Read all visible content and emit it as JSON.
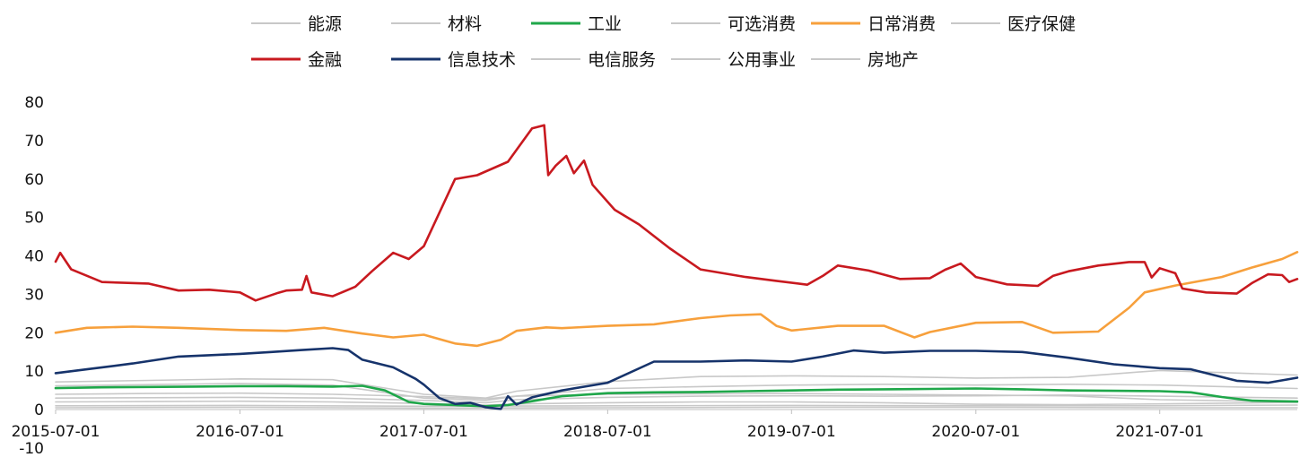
{
  "chart_data": {
    "type": "line",
    "title": "",
    "xlabel": "",
    "ylabel": "",
    "ylim": [
      -10,
      80
    ],
    "yticks": [
      -10,
      0,
      10,
      20,
      30,
      40,
      50,
      60,
      70,
      80
    ],
    "xlim": [
      "2015-07-01",
      "2022-03-31"
    ],
    "xticks": [
      "2015-07-01",
      "2016-07-01",
      "2017-07-01",
      "2018-07-01",
      "2019-07-01",
      "2020-07-01",
      "2021-07-01"
    ],
    "grid": false,
    "legend_position": "top",
    "series": [
      {
        "name": "能源",
        "color": "#c8c8c8",
        "highlight": false,
        "points": [
          [
            "2015-07-01",
            2.0
          ],
          [
            "2016-01-01",
            2.1
          ],
          [
            "2016-07-01",
            2.2
          ],
          [
            "2017-01-01",
            2.0
          ],
          [
            "2017-07-01",
            1.6
          ],
          [
            "2017-11-01",
            1.2
          ],
          [
            "2018-01-01",
            1.5
          ],
          [
            "2018-07-01",
            1.8
          ],
          [
            "2019-01-01",
            2.0
          ],
          [
            "2019-07-01",
            2.0
          ],
          [
            "2020-01-01",
            1.8
          ],
          [
            "2020-07-01",
            1.4
          ],
          [
            "2021-01-01",
            1.3
          ],
          [
            "2021-07-01",
            1.5
          ],
          [
            "2022-03-31",
            1.9
          ]
        ]
      },
      {
        "name": "材料",
        "color": "#c8c8c8",
        "highlight": false,
        "points": [
          [
            "2015-07-01",
            3.0
          ],
          [
            "2016-01-01",
            3.1
          ],
          [
            "2016-07-01",
            3.2
          ],
          [
            "2017-01-01",
            3.0
          ],
          [
            "2017-07-01",
            2.4
          ],
          [
            "2017-11-01",
            1.8
          ],
          [
            "2018-01-01",
            2.6
          ],
          [
            "2018-07-01",
            3.2
          ],
          [
            "2019-01-01",
            3.5
          ],
          [
            "2019-07-01",
            3.6
          ],
          [
            "2020-01-01",
            3.5
          ],
          [
            "2020-07-01",
            3.6
          ],
          [
            "2021-01-01",
            3.8
          ],
          [
            "2021-07-01",
            3.5
          ],
          [
            "2022-03-31",
            3.0
          ]
        ]
      },
      {
        "name": "工业",
        "color": "#1fa74a",
        "highlight": true,
        "points": [
          [
            "2015-07-01",
            5.6
          ],
          [
            "2015-10-01",
            5.8
          ],
          [
            "2016-01-01",
            5.9
          ],
          [
            "2016-04-01",
            6.0
          ],
          [
            "2016-07-01",
            6.1
          ],
          [
            "2016-10-01",
            6.1
          ],
          [
            "2017-01-01",
            6.0
          ],
          [
            "2017-03-01",
            6.2
          ],
          [
            "2017-04-15",
            5.0
          ],
          [
            "2017-06-01",
            2.0
          ],
          [
            "2017-07-01",
            1.5
          ],
          [
            "2017-09-01",
            1.2
          ],
          [
            "2017-11-01",
            0.9
          ],
          [
            "2017-12-15",
            1.2
          ],
          [
            "2018-02-01",
            2.2
          ],
          [
            "2018-04-01",
            3.5
          ],
          [
            "2018-07-01",
            4.3
          ],
          [
            "2018-10-01",
            4.5
          ],
          [
            "2019-01-01",
            4.6
          ],
          [
            "2019-04-01",
            4.8
          ],
          [
            "2019-07-01",
            5.0
          ],
          [
            "2019-10-01",
            5.2
          ],
          [
            "2020-01-01",
            5.3
          ],
          [
            "2020-04-01",
            5.4
          ],
          [
            "2020-07-01",
            5.5
          ],
          [
            "2020-10-01",
            5.3
          ],
          [
            "2021-01-01",
            5.0
          ],
          [
            "2021-04-01",
            4.9
          ],
          [
            "2021-07-01",
            4.8
          ],
          [
            "2021-09-01",
            4.5
          ],
          [
            "2021-11-01",
            3.3
          ],
          [
            "2022-01-01",
            2.3
          ],
          [
            "2022-03-31",
            2.1
          ]
        ]
      },
      {
        "name": "可选消费",
        "color": "#c8c8c8",
        "highlight": false,
        "points": [
          [
            "2015-07-01",
            6.2
          ],
          [
            "2016-01-01",
            6.5
          ],
          [
            "2016-07-01",
            6.8
          ],
          [
            "2017-01-01",
            6.4
          ],
          [
            "2017-07-01",
            3.0
          ],
          [
            "2017-11-01",
            2.4
          ],
          [
            "2018-01-01",
            3.5
          ],
          [
            "2018-07-01",
            5.5
          ],
          [
            "2019-01-01",
            6.0
          ],
          [
            "2019-07-01",
            6.4
          ],
          [
            "2020-01-01",
            6.6
          ],
          [
            "2020-07-01",
            6.4
          ],
          [
            "2021-01-01",
            6.6
          ],
          [
            "2021-07-01",
            6.4
          ],
          [
            "2022-03-31",
            5.5
          ]
        ]
      },
      {
        "name": "日常消费",
        "color": "#f7a03c",
        "highlight": true,
        "points": [
          [
            "2015-07-01",
            20.0
          ],
          [
            "2015-09-01",
            21.3
          ],
          [
            "2015-12-01",
            21.6
          ],
          [
            "2016-03-01",
            21.3
          ],
          [
            "2016-07-01",
            20.7
          ],
          [
            "2016-10-01",
            20.5
          ],
          [
            "2016-12-15",
            21.3
          ],
          [
            "2017-03-01",
            19.8
          ],
          [
            "2017-05-01",
            18.8
          ],
          [
            "2017-07-01",
            19.5
          ],
          [
            "2017-09-01",
            17.2
          ],
          [
            "2017-10-15",
            16.6
          ],
          [
            "2017-12-01",
            18.2
          ],
          [
            "2018-01-01",
            20.5
          ],
          [
            "2018-03-01",
            21.4
          ],
          [
            "2018-04-01",
            21.2
          ],
          [
            "2018-07-01",
            21.8
          ],
          [
            "2018-10-01",
            22.2
          ],
          [
            "2019-01-01",
            23.8
          ],
          [
            "2019-03-01",
            24.5
          ],
          [
            "2019-05-01",
            24.8
          ],
          [
            "2019-06-01",
            21.8
          ],
          [
            "2019-07-01",
            20.6
          ],
          [
            "2019-10-01",
            21.8
          ],
          [
            "2020-01-01",
            21.8
          ],
          [
            "2020-03-01",
            18.8
          ],
          [
            "2020-04-01",
            20.2
          ],
          [
            "2020-07-01",
            22.6
          ],
          [
            "2020-10-01",
            22.8
          ],
          [
            "2020-12-01",
            20.0
          ],
          [
            "2021-03-01",
            20.3
          ],
          [
            "2021-05-01",
            26.5
          ],
          [
            "2021-06-01",
            30.5
          ],
          [
            "2021-08-01",
            32.3
          ],
          [
            "2021-11-01",
            34.5
          ],
          [
            "2022-01-01",
            37.0
          ],
          [
            "2022-03-01",
            39.2
          ],
          [
            "2022-03-31",
            41.0
          ]
        ]
      },
      {
        "name": "医疗保健",
        "color": "#c8c8c8",
        "highlight": false,
        "points": [
          [
            "2015-07-01",
            7.2
          ],
          [
            "2016-01-01",
            7.6
          ],
          [
            "2016-07-01",
            8.0
          ],
          [
            "2017-01-01",
            7.8
          ],
          [
            "2017-07-01",
            4.0
          ],
          [
            "2017-11-01",
            3.0
          ],
          [
            "2018-01-01",
            4.8
          ],
          [
            "2018-07-01",
            7.3
          ],
          [
            "2019-01-01",
            8.6
          ],
          [
            "2019-07-01",
            8.8
          ],
          [
            "2020-01-01",
            8.6
          ],
          [
            "2020-07-01",
            8.2
          ],
          [
            "2021-01-01",
            8.4
          ],
          [
            "2021-05-01",
            9.6
          ],
          [
            "2021-07-01",
            10.2
          ],
          [
            "2022-03-31",
            9.0
          ]
        ]
      },
      {
        "name": "金融",
        "color": "#c8191f",
        "highlight": true,
        "points": [
          [
            "2015-07-01",
            38.5
          ],
          [
            "2015-07-10",
            40.8
          ],
          [
            "2015-08-01",
            36.5
          ],
          [
            "2015-10-01",
            33.2
          ],
          [
            "2016-01-01",
            32.8
          ],
          [
            "2016-03-01",
            31.0
          ],
          [
            "2016-05-01",
            31.2
          ],
          [
            "2016-07-01",
            30.5
          ],
          [
            "2016-08-01",
            28.4
          ],
          [
            "2016-09-15",
            30.4
          ],
          [
            "2016-10-01",
            31.0
          ],
          [
            "2016-11-01",
            31.2
          ],
          [
            "2016-11-10",
            34.8
          ],
          [
            "2016-11-20",
            30.5
          ],
          [
            "2017-01-01",
            29.5
          ],
          [
            "2017-02-15",
            32.0
          ],
          [
            "2017-03-20",
            36.0
          ],
          [
            "2017-05-01",
            40.8
          ],
          [
            "2017-06-01",
            39.2
          ],
          [
            "2017-07-01",
            42.5
          ],
          [
            "2017-09-01",
            60.0
          ],
          [
            "2017-10-15",
            61.0
          ],
          [
            "2017-12-15",
            64.5
          ],
          [
            "2018-02-01",
            73.2
          ],
          [
            "2018-02-25",
            74.0
          ],
          [
            "2018-03-05",
            61.0
          ],
          [
            "2018-03-20",
            63.5
          ],
          [
            "2018-04-10",
            66.0
          ],
          [
            "2018-04-25",
            61.5
          ],
          [
            "2018-05-15",
            64.8
          ],
          [
            "2018-06-01",
            58.5
          ],
          [
            "2018-07-15",
            52.0
          ],
          [
            "2018-09-01",
            48.2
          ],
          [
            "2018-11-01",
            42.0
          ],
          [
            "2019-01-01",
            36.5
          ],
          [
            "2019-04-01",
            34.5
          ],
          [
            "2019-06-01",
            33.5
          ],
          [
            "2019-08-01",
            32.5
          ],
          [
            "2019-09-01",
            34.8
          ],
          [
            "2019-10-01",
            37.5
          ],
          [
            "2019-12-01",
            36.2
          ],
          [
            "2020-02-01",
            34.0
          ],
          [
            "2020-04-01",
            34.2
          ],
          [
            "2020-05-01",
            36.4
          ],
          [
            "2020-06-01",
            38.0
          ],
          [
            "2020-07-01",
            34.5
          ],
          [
            "2020-09-01",
            32.6
          ],
          [
            "2020-11-01",
            32.2
          ],
          [
            "2020-12-01",
            34.8
          ],
          [
            "2021-01-01",
            36.0
          ],
          [
            "2021-03-01",
            37.5
          ],
          [
            "2021-05-01",
            38.4
          ],
          [
            "2021-06-01",
            38.4
          ],
          [
            "2021-06-15",
            34.4
          ],
          [
            "2021-07-01",
            36.8
          ],
          [
            "2021-08-01",
            35.5
          ],
          [
            "2021-08-15",
            31.5
          ],
          [
            "2021-10-01",
            30.5
          ],
          [
            "2021-12-01",
            30.2
          ],
          [
            "2022-01-01",
            33.0
          ],
          [
            "2022-02-01",
            35.2
          ],
          [
            "2022-03-01",
            35.0
          ],
          [
            "2022-03-15",
            33.2
          ],
          [
            "2022-03-31",
            34.0
          ]
        ]
      },
      {
        "name": "信息技术",
        "color": "#16336b",
        "highlight": true,
        "points": [
          [
            "2015-07-01",
            9.5
          ],
          [
            "2015-09-01",
            10.5
          ],
          [
            "2015-12-01",
            12.0
          ],
          [
            "2016-03-01",
            13.8
          ],
          [
            "2016-07-01",
            14.5
          ],
          [
            "2016-09-01",
            15.0
          ],
          [
            "2016-11-01",
            15.5
          ],
          [
            "2017-01-01",
            16.0
          ],
          [
            "2017-02-01",
            15.5
          ],
          [
            "2017-03-01",
            13.0
          ],
          [
            "2017-05-01",
            11.0
          ],
          [
            "2017-06-15",
            8.0
          ],
          [
            "2017-07-01",
            6.5
          ],
          [
            "2017-08-01",
            3.0
          ],
          [
            "2017-09-01",
            1.5
          ],
          [
            "2017-10-01",
            1.8
          ],
          [
            "2017-11-01",
            0.6
          ],
          [
            "2017-12-01",
            0.2
          ],
          [
            "2017-12-15",
            3.5
          ],
          [
            "2018-01-01",
            1.3
          ],
          [
            "2018-02-01",
            3.2
          ],
          [
            "2018-04-01",
            5.0
          ],
          [
            "2018-07-01",
            7.0
          ],
          [
            "2018-10-01",
            12.5
          ],
          [
            "2019-01-01",
            12.5
          ],
          [
            "2019-04-01",
            12.8
          ],
          [
            "2019-07-01",
            12.5
          ],
          [
            "2019-09-01",
            13.8
          ],
          [
            "2019-11-01",
            15.4
          ],
          [
            "2020-01-01",
            14.8
          ],
          [
            "2020-04-01",
            15.3
          ],
          [
            "2020-07-01",
            15.3
          ],
          [
            "2020-10-01",
            15.0
          ],
          [
            "2021-01-01",
            13.5
          ],
          [
            "2021-04-01",
            11.8
          ],
          [
            "2021-07-01",
            10.8
          ],
          [
            "2021-09-01",
            10.5
          ],
          [
            "2021-12-01",
            7.5
          ],
          [
            "2022-02-01",
            7.0
          ],
          [
            "2022-03-31",
            8.3
          ]
        ]
      },
      {
        "name": "电信服务",
        "color": "#c8c8c8",
        "highlight": false,
        "points": [
          [
            "2015-07-01",
            0.5
          ],
          [
            "2016-07-01",
            0.6
          ],
          [
            "2017-07-01",
            0.4
          ],
          [
            "2018-07-01",
            0.5
          ],
          [
            "2019-07-01",
            0.6
          ],
          [
            "2020-07-01",
            0.6
          ],
          [
            "2021-07-01",
            0.5
          ],
          [
            "2022-03-31",
            0.5
          ]
        ]
      },
      {
        "name": "公用事业",
        "color": "#c8c8c8",
        "highlight": false,
        "points": [
          [
            "2015-07-01",
            1.0
          ],
          [
            "2016-07-01",
            1.1
          ],
          [
            "2017-07-01",
            0.9
          ],
          [
            "2018-07-01",
            1.0
          ],
          [
            "2019-07-01",
            1.1
          ],
          [
            "2020-07-01",
            1.0
          ],
          [
            "2021-07-01",
            1.0
          ],
          [
            "2022-03-31",
            1.2
          ]
        ]
      },
      {
        "name": "房地产",
        "color": "#c8c8c8",
        "highlight": false,
        "points": [
          [
            "2015-07-01",
            4.0
          ],
          [
            "2016-01-01",
            4.2
          ],
          [
            "2016-07-01",
            4.3
          ],
          [
            "2017-01-01",
            4.0
          ],
          [
            "2017-07-01",
            3.4
          ],
          [
            "2017-11-01",
            2.8
          ],
          [
            "2018-01-01",
            3.5
          ],
          [
            "2018-07-01",
            4.0
          ],
          [
            "2019-01-01",
            4.1
          ],
          [
            "2019-07-01",
            4.2
          ],
          [
            "2020-01-01",
            4.0
          ],
          [
            "2020-07-01",
            3.8
          ],
          [
            "2021-01-01",
            3.6
          ],
          [
            "2021-07-01",
            2.6
          ],
          [
            "2022-03-31",
            2.0
          ]
        ]
      }
    ]
  }
}
